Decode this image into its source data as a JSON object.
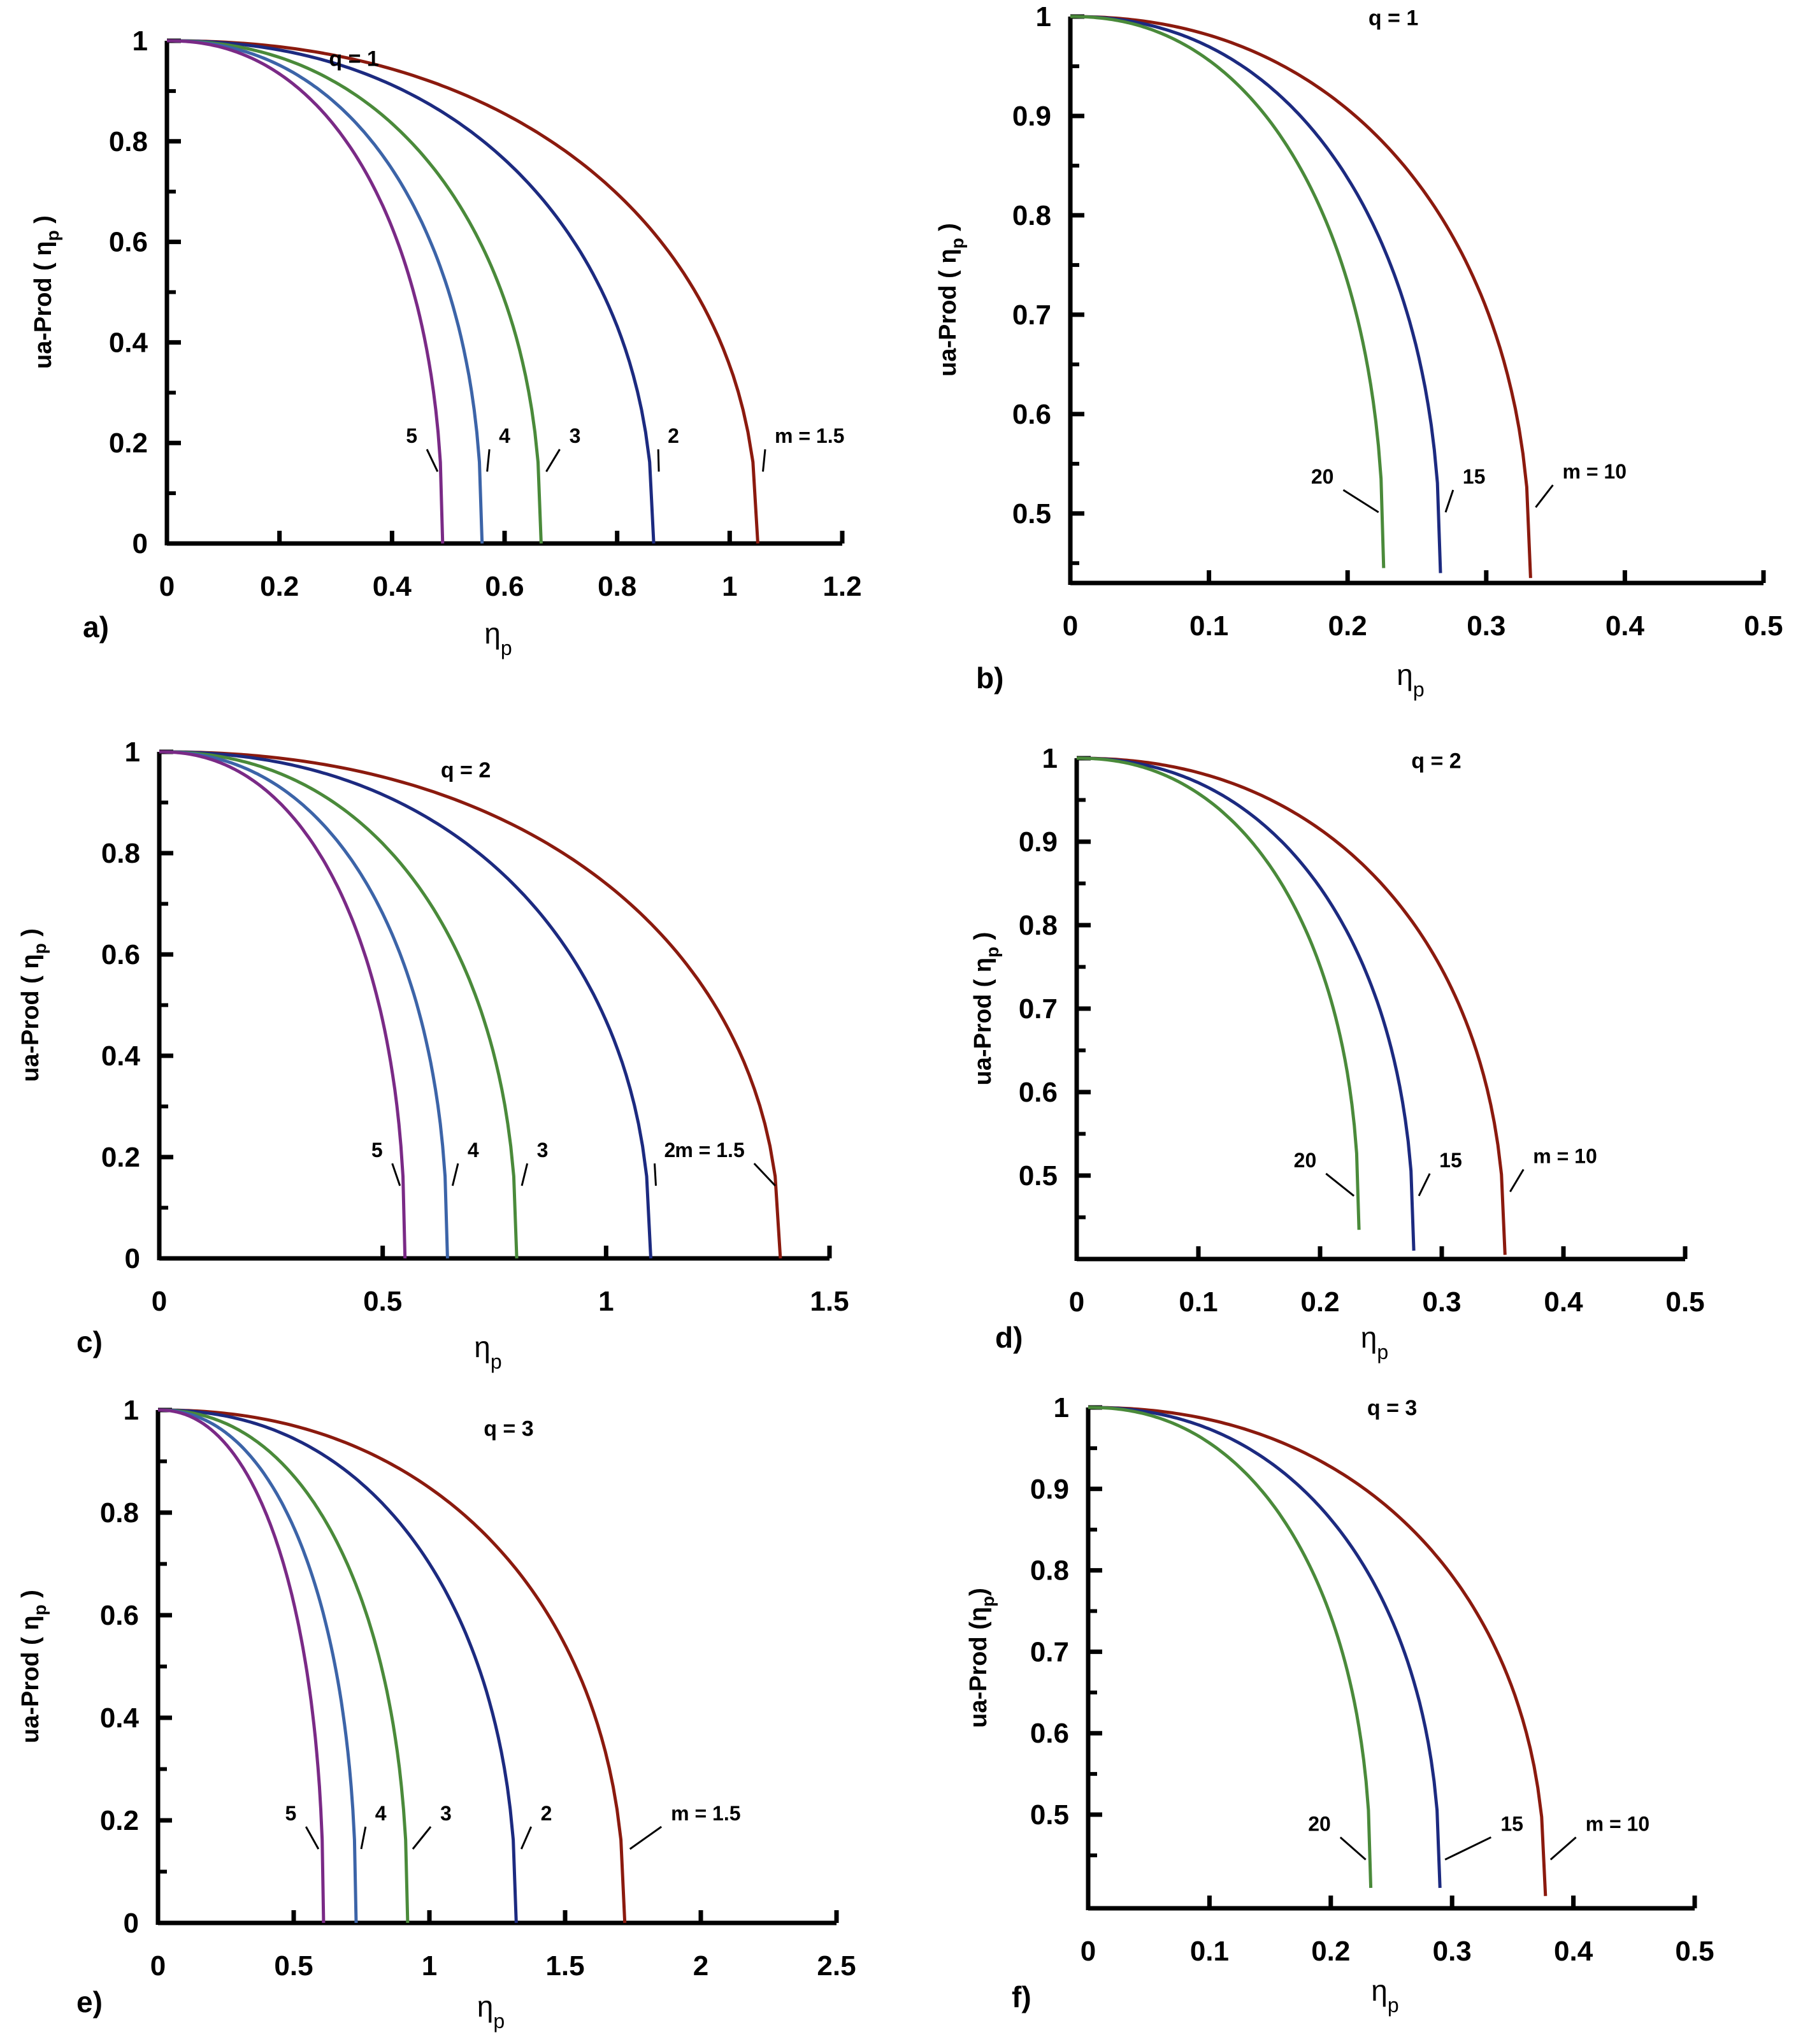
{
  "chart_data": [
    {
      "panel": "a)",
      "type": "line",
      "title": "q = 1",
      "xlabel": "η",
      "xlabel_sub": "p",
      "ylabel": "ua-Prod ( η",
      "ylabel_sub": "p",
      "ylabel_end": " )",
      "xlim": [
        0,
        1.2
      ],
      "ylim": [
        0,
        1
      ],
      "xticks": [
        0,
        0.2,
        0.4,
        0.6,
        0.8,
        1,
        1.2
      ],
      "xtick_labels": [
        "0",
        "0.2",
        "0.4",
        "0.6",
        "0.8",
        "1",
        "1.2"
      ],
      "yticks": [
        0,
        0.2,
        0.4,
        0.6,
        0.8,
        1
      ],
      "ytick_labels": [
        "0",
        "0.2",
        "0.4",
        "0.6",
        "0.8",
        "1"
      ],
      "series": [
        {
          "name": "m = 1.5",
          "label": "m = 1.5",
          "color": "#8b1a0e",
          "x_end": 1.05,
          "y_end": 0,
          "label_x": 1.08,
          "label_y": 0.2
        },
        {
          "name": "2",
          "label": "2",
          "color": "#1c2a80",
          "x_end": 0.865,
          "y_end": 0,
          "label_x": 0.89,
          "label_y": 0.2
        },
        {
          "name": "3",
          "label": "3",
          "color": "#4a8a3a",
          "x_end": 0.665,
          "y_end": 0,
          "label_x": 0.715,
          "label_y": 0.2
        },
        {
          "name": "4",
          "label": "4",
          "color": "#3c64a8",
          "x_end": 0.56,
          "y_end": 0,
          "label_x": 0.59,
          "label_y": 0.2
        },
        {
          "name": "5",
          "label": "5",
          "color": "#7a2a86",
          "x_end": 0.49,
          "y_end": 0,
          "label_x": 0.445,
          "label_y": 0.2
        }
      ]
    },
    {
      "panel": "b)",
      "type": "line",
      "title": "q = 1",
      "xlabel": "η",
      "xlabel_sub": "p",
      "ylabel": "ua-Prod ( η",
      "ylabel_sub": "p",
      "ylabel_end": " )",
      "xlim": [
        0,
        0.5
      ],
      "ylim": [
        0.43,
        1
      ],
      "xticks": [
        0,
        0.1,
        0.2,
        0.3,
        0.4,
        0.5
      ],
      "xtick_labels": [
        "0",
        "0.1",
        "0.2",
        "0.3",
        "0.4",
        "0.5"
      ],
      "yticks": [
        0.5,
        0.6,
        0.7,
        0.8,
        0.9,
        1
      ],
      "ytick_labels": [
        "0.5",
        "0.6",
        "0.7",
        "0.8",
        "0.9",
        "1"
      ],
      "series": [
        {
          "name": "m = 10",
          "label": "m = 10",
          "color": "#8b1a0e",
          "x_end": 0.332,
          "y_end": 0.435,
          "label_x": 0.355,
          "label_y": 0.535
        },
        {
          "name": "15",
          "label": "15",
          "color": "#1c2a80",
          "x_end": 0.267,
          "y_end": 0.44,
          "label_x": 0.283,
          "label_y": 0.53
        },
        {
          "name": "20",
          "label": "20",
          "color": "#4a8a3a",
          "x_end": 0.226,
          "y_end": 0.445,
          "label_x": 0.19,
          "label_y": 0.53
        }
      ]
    },
    {
      "panel": "c)",
      "type": "line",
      "title": "q = 2",
      "xlabel": "η",
      "xlabel_sub": "p",
      "ylabel": "ua-Prod ( η",
      "ylabel_sub": "p",
      "ylabel_end": " )",
      "xlim": [
        0,
        1.5
      ],
      "ylim": [
        0,
        1
      ],
      "xticks": [
        0,
        0.5,
        1,
        1.5
      ],
      "xtick_labels": [
        "0",
        "0.5",
        "1",
        "1.5"
      ],
      "yticks": [
        0,
        0.2,
        0.4,
        0.6,
        0.8,
        1
      ],
      "ytick_labels": [
        "0",
        "0.2",
        "0.4",
        "0.6",
        "0.8",
        "1"
      ],
      "series": [
        {
          "name": "m = 1.5",
          "label": "m = 1.5",
          "color": "#8b1a0e",
          "x_end": 1.39,
          "y_end": 0,
          "label_x": 1.31,
          "label_y": 0.2
        },
        {
          "name": "2",
          "label": "2",
          "color": "#1c2a80",
          "x_end": 1.1,
          "y_end": 0,
          "label_x": 1.13,
          "label_y": 0.2
        },
        {
          "name": "3",
          "label": "3",
          "color": "#4a8a3a",
          "x_end": 0.8,
          "y_end": 0,
          "label_x": 0.845,
          "label_y": 0.2
        },
        {
          "name": "4",
          "label": "4",
          "color": "#3c64a8",
          "x_end": 0.645,
          "y_end": 0,
          "label_x": 0.69,
          "label_y": 0.2
        },
        {
          "name": "5",
          "label": "5",
          "color": "#7a2a86",
          "x_end": 0.55,
          "y_end": 0,
          "label_x": 0.5,
          "label_y": 0.2
        }
      ]
    },
    {
      "panel": "d)",
      "type": "line",
      "title": "q = 2",
      "xlabel": "η",
      "xlabel_sub": "p",
      "ylabel": "ua-Prod ( η",
      "ylabel_sub": "p",
      "ylabel_end": " )",
      "xlim": [
        0,
        0.5
      ],
      "ylim": [
        0.4,
        1
      ],
      "xticks": [
        0,
        0.1,
        0.2,
        0.3,
        0.4,
        0.5
      ],
      "xtick_labels": [
        "0",
        "0.1",
        "0.2",
        "0.3",
        "0.4",
        "0.5"
      ],
      "yticks": [
        0.5,
        0.6,
        0.7,
        0.8,
        0.9,
        1
      ],
      "ytick_labels": [
        "0.5",
        "0.6",
        "0.7",
        "0.8",
        "0.9",
        "1"
      ],
      "series": [
        {
          "name": "m = 10",
          "label": "m = 10",
          "color": "#8b1a0e",
          "x_end": 0.352,
          "y_end": 0.405,
          "label_x": 0.375,
          "label_y": 0.515
        },
        {
          "name": "15",
          "label": "15",
          "color": "#1c2a80",
          "x_end": 0.277,
          "y_end": 0.41,
          "label_x": 0.298,
          "label_y": 0.51
        },
        {
          "name": "20",
          "label": "20",
          "color": "#4a8a3a",
          "x_end": 0.232,
          "y_end": 0.435,
          "label_x": 0.197,
          "label_y": 0.51
        }
      ]
    },
    {
      "panel": "e)",
      "type": "line",
      "title": "q = 3",
      "xlabel": "η",
      "xlabel_sub": "p",
      "ylabel": "ua-Prod ( η",
      "ylabel_sub": "p",
      "ylabel_end": " )",
      "xlim": [
        0,
        2.5
      ],
      "ylim": [
        0,
        1
      ],
      "xticks": [
        0,
        0.5,
        1,
        1.5,
        2,
        2.5
      ],
      "xtick_labels": [
        "0",
        "0.5",
        "1",
        "1.5",
        "2",
        "2.5"
      ],
      "yticks": [
        0,
        0.2,
        0.4,
        0.6,
        0.8,
        1
      ],
      "ytick_labels": [
        "0",
        "0.2",
        "0.4",
        "0.6",
        "0.8",
        "1"
      ],
      "series": [
        {
          "name": "m = 1.5",
          "label": "m = 1.5",
          "color": "#8b1a0e",
          "x_end": 1.72,
          "y_end": 0,
          "label_x": 1.89,
          "label_y": 0.2
        },
        {
          "name": "2",
          "label": "2",
          "color": "#1c2a80",
          "x_end": 1.32,
          "y_end": 0,
          "label_x": 1.41,
          "label_y": 0.2
        },
        {
          "name": "3",
          "label": "3",
          "color": "#4a8a3a",
          "x_end": 0.92,
          "y_end": 0,
          "label_x": 1.04,
          "label_y": 0.2
        },
        {
          "name": "4",
          "label": "4",
          "color": "#3c64a8",
          "x_end": 0.73,
          "y_end": 0,
          "label_x": 0.8,
          "label_y": 0.2
        },
        {
          "name": "5",
          "label": "5",
          "color": "#7a2a86",
          "x_end": 0.61,
          "y_end": 0,
          "label_x": 0.51,
          "label_y": 0.2
        }
      ]
    },
    {
      "panel": "f)",
      "type": "line",
      "title": "q = 3",
      "xlabel": "η",
      "xlabel_sub": "p",
      "ylabel": "ua-Prod (η",
      "ylabel_sub": "p",
      "ylabel_end": ")",
      "xlim": [
        0,
        0.5
      ],
      "ylim": [
        0.385,
        1
      ],
      "xticks": [
        0,
        0.1,
        0.2,
        0.3,
        0.4,
        0.5
      ],
      "xtick_labels": [
        "0",
        "0.1",
        "0.2",
        "0.3",
        "0.4",
        "0.5"
      ],
      "yticks": [
        0.5,
        0.6,
        0.7,
        0.8,
        0.9,
        1
      ],
      "ytick_labels": [
        "0.5",
        "0.6",
        "0.7",
        "0.8",
        "0.9",
        "1"
      ],
      "series": [
        {
          "name": "m = 10",
          "label": "m = 10",
          "color": "#8b1a0e",
          "x_end": 0.377,
          "y_end": 0.4,
          "label_x": 0.41,
          "label_y": 0.48
        },
        {
          "name": "15",
          "label": "15",
          "color": "#1c2a80",
          "x_end": 0.29,
          "y_end": 0.41,
          "label_x": 0.34,
          "label_y": 0.48
        },
        {
          "name": "20",
          "label": "20",
          "color": "#4a8a3a",
          "x_end": 0.233,
          "y_end": 0.41,
          "label_x": 0.2,
          "label_y": 0.48
        }
      ]
    }
  ]
}
